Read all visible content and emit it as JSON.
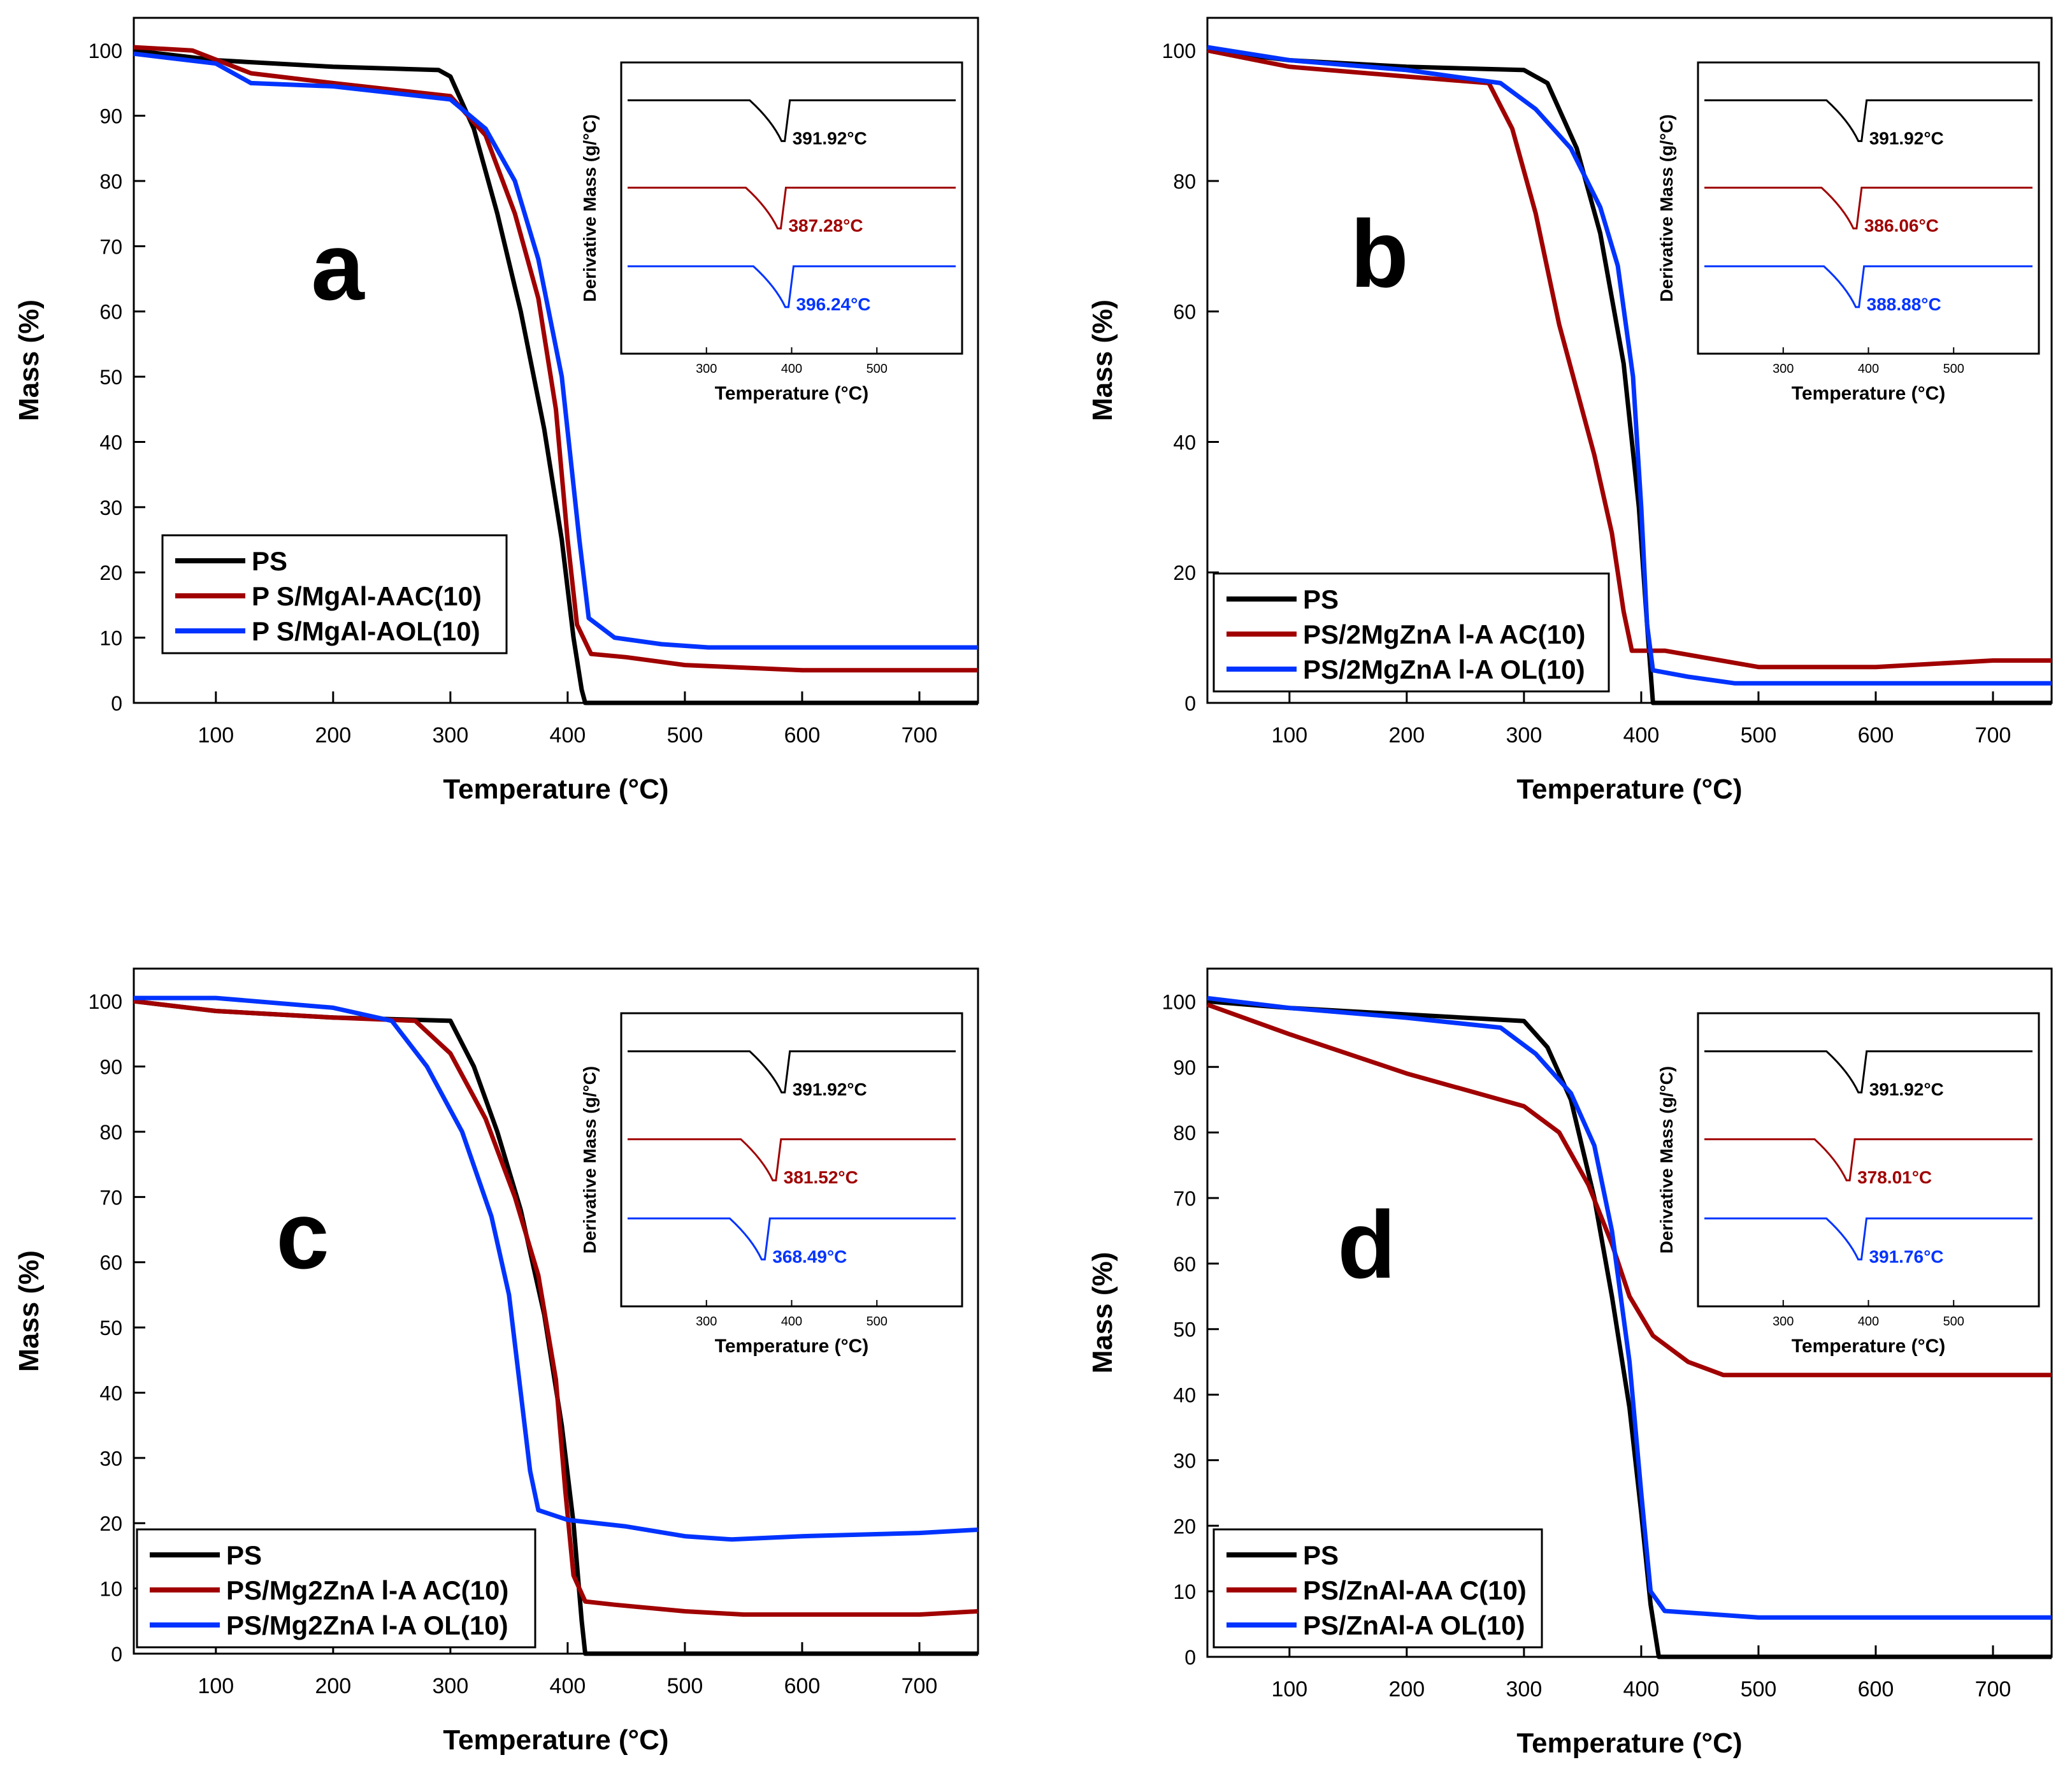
{
  "colors": {
    "ps": "#000000",
    "aac": "#a00000",
    "aol": "#0033ff",
    "axis": "#000000"
  },
  "chart_data": [
    {
      "panel": "a",
      "type": "line",
      "title": "a",
      "xlabel": "Temperature (°C)",
      "ylabel": "Mass (%)",
      "xlim": [
        30,
        750
      ],
      "ylim": [
        0,
        105
      ],
      "xticks": [
        "100",
        "200",
        "300",
        "400",
        "500",
        "600",
        "700"
      ],
      "yticks": [
        "0",
        "10",
        "20",
        "30",
        "40",
        "50",
        "60",
        "70",
        "80",
        "90",
        "100"
      ],
      "legend_position": "bottom-left",
      "series": [
        {
          "name": "PS",
          "color_key": "ps",
          "points": [
            [
              30,
              100
            ],
            [
              100,
              98.5
            ],
            [
              200,
              97.5
            ],
            [
              290,
              97
            ],
            [
              300,
              96
            ],
            [
              320,
              88
            ],
            [
              340,
              75
            ],
            [
              360,
              60
            ],
            [
              380,
              42
            ],
            [
              395,
              25
            ],
            [
              405,
              10
            ],
            [
              412,
              2
            ],
            [
              415,
              0
            ],
            [
              750,
              0
            ]
          ]
        },
        {
          "name": "P S/MgAl-AAC(10)",
          "color_key": "aac",
          "points": [
            [
              30,
              100.5
            ],
            [
              80,
              100
            ],
            [
              130,
              96.5
            ],
            [
              200,
              95
            ],
            [
              300,
              93
            ],
            [
              330,
              87
            ],
            [
              355,
              75
            ],
            [
              375,
              62
            ],
            [
              390,
              45
            ],
            [
              400,
              25
            ],
            [
              408,
              12
            ],
            [
              420,
              7.5
            ],
            [
              450,
              7
            ],
            [
              500,
              5.8
            ],
            [
              600,
              5
            ],
            [
              750,
              5
            ]
          ]
        },
        {
          "name": "P S/MgAl-AOL(10)",
          "color_key": "aol",
          "points": [
            [
              30,
              99.5
            ],
            [
              100,
              98
            ],
            [
              130,
              95
            ],
            [
              200,
              94.5
            ],
            [
              300,
              92.5
            ],
            [
              330,
              88
            ],
            [
              355,
              80
            ],
            [
              375,
              68
            ],
            [
              395,
              50
            ],
            [
              410,
              25
            ],
            [
              418,
              13
            ],
            [
              440,
              10
            ],
            [
              480,
              9
            ],
            [
              520,
              8.5
            ],
            [
              750,
              8.5
            ]
          ]
        }
      ]
    },
    {
      "panel": "b",
      "type": "line",
      "title": "b",
      "xlabel": "Temperature (°C)",
      "ylabel": "Mass (%)",
      "xlim": [
        30,
        750
      ],
      "ylim": [
        0,
        105
      ],
      "xticks": [
        "100",
        "200",
        "300",
        "400",
        "500",
        "600",
        "700"
      ],
      "yticks": [
        "0",
        "20",
        "40",
        "60",
        "80",
        "100"
      ],
      "legend_position": "bottom-left",
      "series": [
        {
          "name": "PS",
          "color_key": "ps",
          "points": [
            [
              30,
              100
            ],
            [
              100,
              98.5
            ],
            [
              200,
              97.5
            ],
            [
              300,
              97
            ],
            [
              320,
              95
            ],
            [
              345,
              85
            ],
            [
              365,
              72
            ],
            [
              385,
              52
            ],
            [
              398,
              30
            ],
            [
              405,
              12
            ],
            [
              410,
              0
            ],
            [
              750,
              0
            ]
          ]
        },
        {
          "name": "PS/2MgZnA l-A AC(10)",
          "color_key": "aac",
          "points": [
            [
              30,
              100
            ],
            [
              100,
              97.5
            ],
            [
              200,
              96
            ],
            [
              270,
              95
            ],
            [
              290,
              88
            ],
            [
              310,
              75
            ],
            [
              330,
              58
            ],
            [
              345,
              48
            ],
            [
              360,
              38
            ],
            [
              375,
              26
            ],
            [
              385,
              14
            ],
            [
              392,
              8
            ],
            [
              420,
              8
            ],
            [
              500,
              5.5
            ],
            [
              600,
              5.5
            ],
            [
              700,
              6.5
            ],
            [
              750,
              6.5
            ]
          ]
        },
        {
          "name": "PS/2MgZnA l-A OL(10)",
          "color_key": "aol",
          "points": [
            [
              30,
              100.5
            ],
            [
              100,
              98.5
            ],
            [
              200,
              97
            ],
            [
              280,
              95
            ],
            [
              310,
              91
            ],
            [
              340,
              85
            ],
            [
              365,
              76
            ],
            [
              380,
              67
            ],
            [
              393,
              50
            ],
            [
              400,
              30
            ],
            [
              405,
              12
            ],
            [
              410,
              5
            ],
            [
              440,
              4
            ],
            [
              480,
              3
            ],
            [
              750,
              3
            ]
          ]
        }
      ]
    },
    {
      "panel": "c",
      "type": "line",
      "title": "c",
      "xlabel": "Temperature (°C)",
      "ylabel": "Mass (%)",
      "xlim": [
        30,
        750
      ],
      "ylim": [
        0,
        105
      ],
      "xticks": [
        "100",
        "200",
        "300",
        "400",
        "500",
        "600",
        "700"
      ],
      "yticks": [
        "0",
        "10",
        "20",
        "30",
        "40",
        "50",
        "60",
        "70",
        "80",
        "90",
        "100"
      ],
      "legend_position": "bottom-left",
      "series": [
        {
          "name": "PS",
          "color_key": "ps",
          "points": [
            [
              30,
              100
            ],
            [
              100,
              98.5
            ],
            [
              200,
              97.5
            ],
            [
              300,
              97
            ],
            [
              320,
              90
            ],
            [
              340,
              80
            ],
            [
              360,
              68
            ],
            [
              380,
              52
            ],
            [
              395,
              35
            ],
            [
              405,
              20
            ],
            [
              412,
              5
            ],
            [
              415,
              0
            ],
            [
              750,
              0
            ]
          ]
        },
        {
          "name": "PS/Mg2ZnA l-A AC(10)",
          "color_key": "aac",
          "points": [
            [
              30,
              100
            ],
            [
              100,
              98.5
            ],
            [
              200,
              97.5
            ],
            [
              270,
              97
            ],
            [
              300,
              92
            ],
            [
              330,
              82
            ],
            [
              355,
              70
            ],
            [
              375,
              58
            ],
            [
              390,
              42
            ],
            [
              398,
              25
            ],
            [
              405,
              12
            ],
            [
              415,
              8
            ],
            [
              440,
              7.5
            ],
            [
              500,
              6.5
            ],
            [
              550,
              6
            ],
            [
              700,
              6
            ],
            [
              750,
              6.5
            ]
          ]
        },
        {
          "name": "PS/Mg2ZnA l-A OL(10)",
          "color_key": "aol",
          "points": [
            [
              30,
              100.5
            ],
            [
              100,
              100.5
            ],
            [
              200,
              99
            ],
            [
              250,
              97
            ],
            [
              280,
              90
            ],
            [
              310,
              80
            ],
            [
              335,
              67
            ],
            [
              350,
              55
            ],
            [
              360,
              40
            ],
            [
              368,
              28
            ],
            [
              375,
              22
            ],
            [
              400,
              20.5
            ],
            [
              450,
              19.5
            ],
            [
              500,
              18
            ],
            [
              540,
              17.5
            ],
            [
              600,
              18
            ],
            [
              700,
              18.5
            ],
            [
              750,
              19
            ]
          ]
        }
      ]
    },
    {
      "panel": "d",
      "type": "line",
      "title": "d",
      "xlabel": "Temperature (°C)",
      "ylabel": "Mass (%)",
      "xlim": [
        30,
        750
      ],
      "ylim": [
        0,
        105
      ],
      "xticks": [
        "100",
        "200",
        "300",
        "400",
        "500",
        "600",
        "700"
      ],
      "yticks": [
        "0",
        "10",
        "20",
        "30",
        "40",
        "50",
        "60",
        "70",
        "80",
        "90",
        "100"
      ],
      "legend_position": "bottom-left",
      "series": [
        {
          "name": "PS",
          "color_key": "ps",
          "points": [
            [
              30,
              100
            ],
            [
              100,
              99
            ],
            [
              200,
              98
            ],
            [
              300,
              97
            ],
            [
              320,
              93
            ],
            [
              340,
              85
            ],
            [
              360,
              70
            ],
            [
              375,
              55
            ],
            [
              390,
              38
            ],
            [
              400,
              22
            ],
            [
              408,
              8
            ],
            [
              415,
              0
            ],
            [
              750,
              0
            ]
          ]
        },
        {
          "name": "PS/ZnAl-AA C(10)",
          "color_key": "aac",
          "points": [
            [
              30,
              99.5
            ],
            [
              100,
              95
            ],
            [
              200,
              89
            ],
            [
              250,
              86.5
            ],
            [
              300,
              84
            ],
            [
              330,
              80
            ],
            [
              355,
              72
            ],
            [
              375,
              63
            ],
            [
              390,
              55
            ],
            [
              410,
              49
            ],
            [
              440,
              45
            ],
            [
              470,
              43
            ],
            [
              750,
              43
            ]
          ]
        },
        {
          "name": "PS/ZnAl-A OL(10)",
          "color_key": "aol",
          "points": [
            [
              30,
              100.5
            ],
            [
              100,
              99
            ],
            [
              200,
              97.5
            ],
            [
              280,
              96
            ],
            [
              310,
              92
            ],
            [
              340,
              86
            ],
            [
              360,
              78
            ],
            [
              375,
              65
            ],
            [
              390,
              45
            ],
            [
              400,
              25
            ],
            [
              408,
              10
            ],
            [
              420,
              7
            ],
            [
              500,
              6
            ],
            [
              750,
              6
            ]
          ]
        }
      ]
    }
  ],
  "insets": [
    {
      "panel": "a",
      "xlabel": "Temperature (°C)",
      "ylabel": "Derivative Mass (g/°C)",
      "xticks": [
        "300",
        "400",
        "500"
      ],
      "xlim": [
        200,
        600
      ],
      "curves": [
        {
          "color_key": "ps",
          "peak_x": 391.92,
          "label": "391.92°C"
        },
        {
          "color_key": "aac",
          "peak_x": 387.28,
          "label": "387.28°C"
        },
        {
          "color_key": "aol",
          "peak_x": 396.24,
          "label": "396.24°C"
        }
      ]
    },
    {
      "panel": "b",
      "xlabel": "Temperature (°C)",
      "ylabel": "Derivative Mass (g/°C)",
      "xticks": [
        "300",
        "400",
        "500"
      ],
      "xlim": [
        200,
        600
      ],
      "curves": [
        {
          "color_key": "ps",
          "peak_x": 391.92,
          "label": "391.92°C"
        },
        {
          "color_key": "aac",
          "peak_x": 386.06,
          "label": "386.06°C"
        },
        {
          "color_key": "aol",
          "peak_x": 388.88,
          "label": "388.88°C"
        }
      ]
    },
    {
      "panel": "c",
      "xlabel": "Temperature (°C)",
      "ylabel": "Derivative Mass (g/°C)",
      "xticks": [
        "300",
        "400",
        "500"
      ],
      "xlim": [
        200,
        600
      ],
      "curves": [
        {
          "color_key": "ps",
          "peak_x": 391.92,
          "label": "391.92°C"
        },
        {
          "color_key": "aac",
          "peak_x": 381.52,
          "label": "381.52°C"
        },
        {
          "color_key": "aol",
          "peak_x": 368.49,
          "label": "368.49°C"
        }
      ]
    },
    {
      "panel": "d",
      "xlabel": "Temperature (°C)",
      "ylabel": "Derivative Mass (g/°C)",
      "xticks": [
        "300",
        "400",
        "500"
      ],
      "xlim": [
        200,
        600
      ],
      "curves": [
        {
          "color_key": "ps",
          "peak_x": 391.92,
          "label": "391.92°C"
        },
        {
          "color_key": "aac",
          "peak_x": 378.01,
          "label": "378.01°C"
        },
        {
          "color_key": "aol",
          "peak_x": 391.76,
          "label": "391.76°C"
        }
      ]
    }
  ]
}
